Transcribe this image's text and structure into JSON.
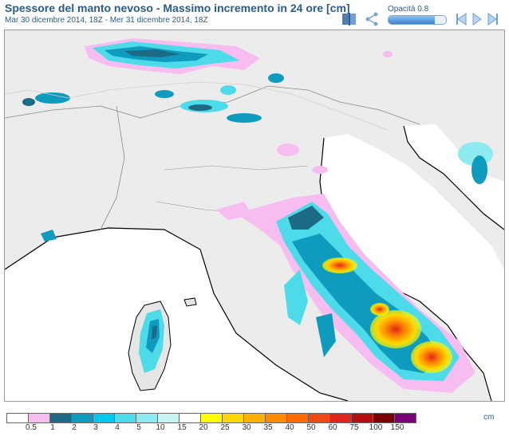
{
  "header": {
    "title": "Spessore del manto nevoso - Massimo incremento in 24 ore [cm]",
    "subtitle": "Mar 30 dicembre 2014, 18Z - Mer 31 dicembre 2014, 18Z"
  },
  "toolbar": {
    "opacity_label": "Opacità 0.8",
    "opacity_value": 0.8,
    "icons": [
      "book-icon",
      "share-icon",
      "previous-icon",
      "play-icon",
      "next-icon"
    ]
  },
  "legend": {
    "unit": "cm",
    "labels": [
      "0.5",
      "1",
      "2",
      "3",
      "4",
      "5",
      "10",
      "15",
      "20",
      "25",
      "30",
      "35",
      "40",
      "50",
      "60",
      "75",
      "100",
      "150"
    ],
    "colors": [
      "#ffffff",
      "#f8bdf0",
      "#1d6a86",
      "#0e9bbd",
      "#00c8ee",
      "#4ddbea",
      "#8ceaf0",
      "#c6f3f3",
      "#ffffff",
      "#ffff00",
      "#ffd800",
      "#ffb000",
      "#ff8c00",
      "#ff6a00",
      "#f04a14",
      "#e0251c",
      "#b40f0f",
      "#7a0000",
      "#7a0078"
    ]
  }
}
